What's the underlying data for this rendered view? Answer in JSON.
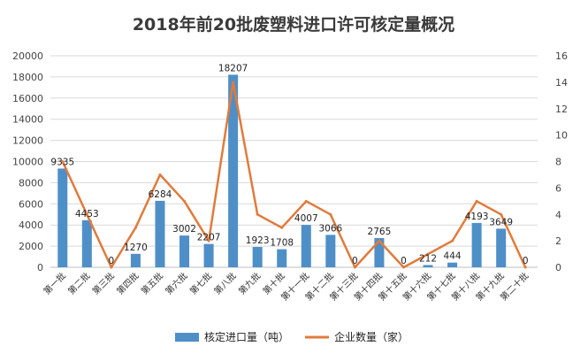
{
  "chart_data": {
    "type": "bar",
    "title": "2018年前20批废塑料进口许可核定量概况",
    "categories": [
      "第一批",
      "第二批",
      "第三批",
      "第四批",
      "第五批",
      "第六批",
      "第七批",
      "第八批",
      "第九批",
      "第十批",
      "第十一批",
      "第十二批",
      "第十三批",
      "第十四批",
      "第十五批",
      "第十六批",
      "第十七批",
      "第十八批",
      "第十九批",
      "第二十批"
    ],
    "series": [
      {
        "name": "核定进口量（吨）",
        "type": "bar",
        "axis": "left",
        "values": [
          9335,
          4453,
          0,
          1270,
          6284,
          3002,
          2207,
          18207,
          1923,
          1708,
          4007,
          3066,
          0,
          2765,
          0,
          212,
          444,
          4193,
          3649,
          0
        ],
        "color": "#4f8fc8"
      },
      {
        "name": "企业数量（家）",
        "type": "line",
        "axis": "right",
        "values": [
          8,
          4,
          0,
          3,
          7,
          5,
          2,
          14,
          4,
          3,
          5,
          4,
          0,
          2,
          0,
          1,
          2,
          5,
          4,
          0
        ],
        "color": "#e07b3c"
      }
    ],
    "y_left": {
      "min": 0,
      "max": 20000,
      "step": 2000,
      "ticks": [
        "0",
        "2000",
        "4000",
        "6000",
        "8000",
        "10000",
        "12000",
        "14000",
        "16000",
        "18000",
        "20000"
      ]
    },
    "y_right": {
      "min": 0,
      "max": 16,
      "step": 2,
      "ticks": [
        "0",
        "2",
        "4",
        "6",
        "8",
        "10",
        "12",
        "14",
        "16"
      ]
    },
    "grid": true,
    "legend_position": "bottom"
  }
}
